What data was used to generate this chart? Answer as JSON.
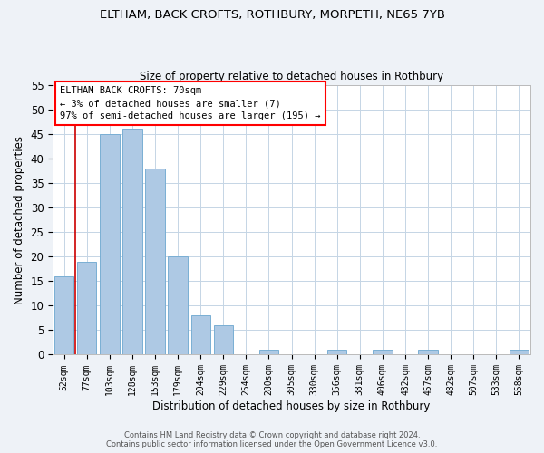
{
  "title": "ELTHAM, BACK CROFTS, ROTHBURY, MORPETH, NE65 7YB",
  "subtitle": "Size of property relative to detached houses in Rothbury",
  "xlabel": "Distribution of detached houses by size in Rothbury",
  "ylabel": "Number of detached properties",
  "bar_color": "#aec9e4",
  "bar_edge_color": "#7aafd4",
  "categories": [
    "52sqm",
    "77sqm",
    "103sqm",
    "128sqm",
    "153sqm",
    "179sqm",
    "204sqm",
    "229sqm",
    "254sqm",
    "280sqm",
    "305sqm",
    "330sqm",
    "356sqm",
    "381sqm",
    "406sqm",
    "432sqm",
    "457sqm",
    "482sqm",
    "507sqm",
    "533sqm",
    "558sqm"
  ],
  "values": [
    16,
    19,
    45,
    46,
    38,
    20,
    8,
    6,
    0,
    1,
    0,
    0,
    1,
    0,
    1,
    0,
    1,
    0,
    0,
    0,
    1
  ],
  "ylim": [
    0,
    55
  ],
  "yticks": [
    0,
    5,
    10,
    15,
    20,
    25,
    30,
    35,
    40,
    45,
    50,
    55
  ],
  "annotation_title": "ELTHAM BACK CROFTS: 70sqm",
  "annotation_line1": "← 3% of detached houses are smaller (7)",
  "annotation_line2": "97% of semi-detached houses are larger (195) →",
  "marker_color": "#cc0000",
  "footer_line1": "Contains HM Land Registry data © Crown copyright and database right 2024.",
  "footer_line2": "Contains public sector information licensed under the Open Government Licence v3.0.",
  "background_color": "#eef2f7",
  "plot_bg_color": "#ffffff",
  "grid_color": "#c5d5e5"
}
